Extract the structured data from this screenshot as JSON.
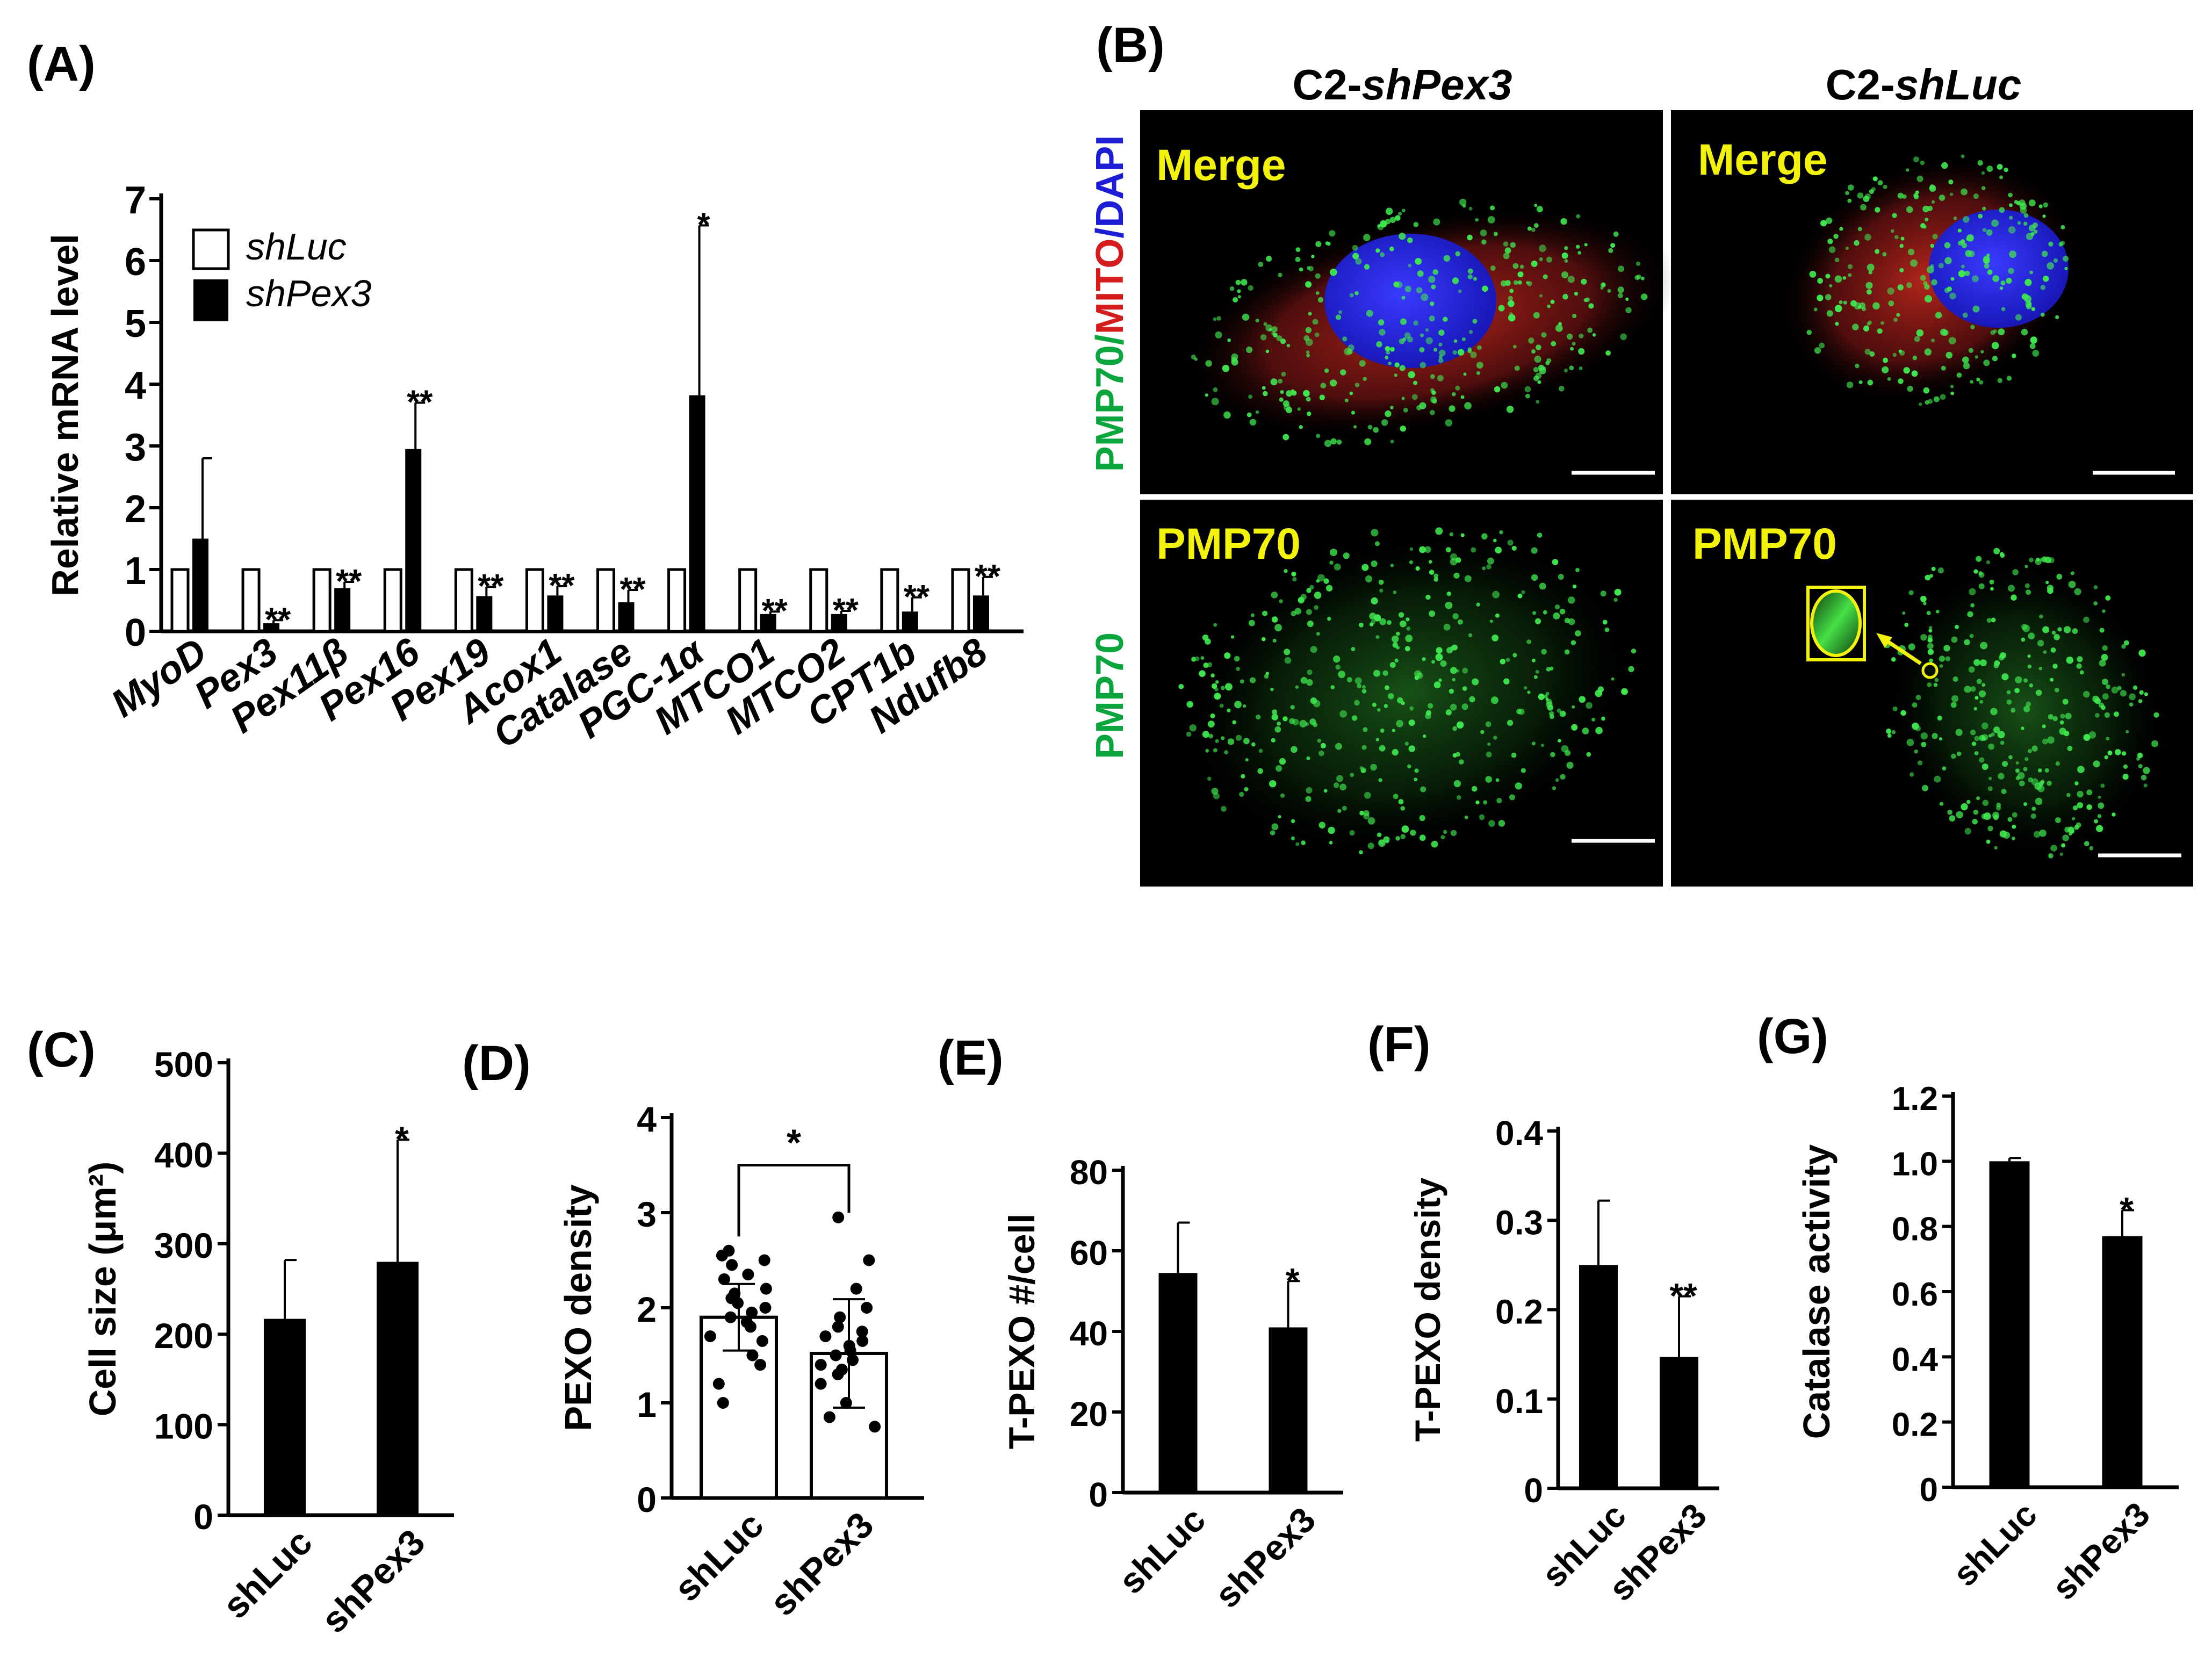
{
  "panels": {
    "A": {
      "label": "(A)",
      "chart_data": {
        "type": "bar",
        "ylabel": "Relative mRNA level",
        "ylim": [
          0,
          7
        ],
        "yticks": [
          "0",
          "1",
          "2",
          "3",
          "4",
          "5",
          "6",
          "7"
        ],
        "categories": [
          "MyoD",
          "Pex3",
          "Pex11β",
          "Pex16",
          "Pex19",
          "Acox1",
          "Catalase",
          "PGC-1α",
          "MTCO1",
          "MTCO2",
          "CPT1b",
          "Ndufb8"
        ],
        "series": [
          {
            "name": "shLuc",
            "color": "#ffffff",
            "values": [
              1,
              1,
              1,
              1,
              1,
              1,
              1,
              1,
              1,
              1,
              1,
              1
            ]
          },
          {
            "name": "shPex3",
            "color": "#000000",
            "values": [
              1.5,
              0.13,
              0.7,
              2.95,
              0.57,
              0.58,
              0.47,
              3.82,
              0.28,
              0.28,
              0.32,
              0.58
            ],
            "errors": [
              1.3,
              0.05,
              0.1,
              0.75,
              0.15,
              0.15,
              0.2,
              2.75,
              0.04,
              0.05,
              0.23,
              0.3
            ]
          }
        ],
        "significance": [
          "",
          "**",
          "**",
          "**",
          "**",
          "**",
          "**",
          "*",
          "**",
          "**",
          "**",
          "**"
        ]
      }
    },
    "B": {
      "label": "(B)",
      "col_headers": [
        {
          "prefix": "C2-",
          "italic": "shPex3"
        },
        {
          "prefix": "C2-",
          "italic": "shLuc"
        }
      ],
      "row_label_top": {
        "parts": [
          {
            "text": "PMP70",
            "color": "#0aa53c"
          },
          {
            "text": "/",
            "color": "#0aa53c"
          },
          {
            "text": "MITO",
            "color": "#d41c1c"
          },
          {
            "text": "/",
            "color": "#1d1dd6"
          },
          {
            "text": "DAPI",
            "color": "#1d1dd6"
          }
        ]
      },
      "row_label_bottom": {
        "text": "PMP70",
        "color": "#0aa53c"
      },
      "tiles": [
        "Merge",
        "Merge",
        "PMP70",
        "PMP70"
      ],
      "colors": {
        "tile_label": "#f2f20a",
        "green": "#2fd64a",
        "red": "#c0201e",
        "blue": "#2a2ae0"
      }
    },
    "C": {
      "label": "(C)",
      "chart_data": {
        "type": "bar",
        "ylabel": "Cell size (μm²)",
        "ylim": [
          0,
          500
        ],
        "yticks": [
          "0",
          "100",
          "200",
          "300",
          "400",
          "500"
        ],
        "categories": [
          "shLuc",
          "shPex3"
        ],
        "values": [
          217,
          280
        ],
        "errors": [
          65,
          135
        ],
        "significance": [
          "",
          "*"
        ]
      }
    },
    "D": {
      "label": "(D)",
      "chart_data": {
        "type": "bar",
        "ylabel": "PEXO density",
        "ylim": [
          0,
          4
        ],
        "yticks": [
          "0",
          "1",
          "2",
          "3",
          "4"
        ],
        "categories": [
          "shLuc",
          "shPex3"
        ],
        "values": [
          1.9,
          1.52
        ],
        "errors": [
          0.35,
          0.57
        ],
        "significance_bracket": "*",
        "points": [
          [
            2.6,
            2.55,
            2.5,
            2.45,
            2.35,
            2.3,
            2.2,
            2.15,
            2.1,
            2.05,
            2.0,
            1.95,
            1.9,
            1.85,
            1.8,
            1.7,
            1.65,
            1.5,
            1.4,
            1.2,
            1.0
          ],
          [
            2.95,
            2.5,
            2.2,
            2.0,
            1.9,
            1.8,
            1.75,
            1.7,
            1.65,
            1.6,
            1.55,
            1.5,
            1.45,
            1.4,
            1.35,
            1.3,
            1.2,
            1.0,
            0.85,
            0.75
          ]
        ]
      }
    },
    "E": {
      "label": "(E)",
      "chart_data": {
        "type": "bar",
        "ylabel": "T-PEXO #/cell",
        "ylim": [
          0,
          80
        ],
        "yticks": [
          "0",
          "20",
          "40",
          "60",
          "80"
        ],
        "categories": [
          "shLuc",
          "shPex3"
        ],
        "values": [
          54.5,
          41
        ],
        "errors": [
          12.5,
          11.5
        ],
        "significance": [
          "",
          "*"
        ]
      }
    },
    "F": {
      "label": "(F)",
      "chart_data": {
        "type": "bar",
        "ylabel": "T-PEXO density",
        "ylim": [
          0,
          0.4
        ],
        "yticks": [
          "0",
          "0.1",
          "0.2",
          "0.3",
          "0.4"
        ],
        "categories": [
          "shLuc",
          "shPex3"
        ],
        "values": [
          0.25,
          0.147
        ],
        "errors": [
          0.072,
          0.068
        ],
        "significance": [
          "",
          "**"
        ]
      }
    },
    "G": {
      "label": "(G)",
      "chart_data": {
        "type": "bar",
        "ylabel": "Catalase activity",
        "ylim": [
          0,
          1.2
        ],
        "yticks": [
          "0",
          "0.2",
          "0.4",
          "0.6",
          "0.8",
          "1.0",
          "1.2"
        ],
        "categories": [
          "shLuc",
          "shPex3"
        ],
        "values": [
          1.0,
          0.77
        ],
        "errors": [
          0.01,
          0.08
        ],
        "significance": [
          "",
          "*"
        ]
      }
    }
  }
}
